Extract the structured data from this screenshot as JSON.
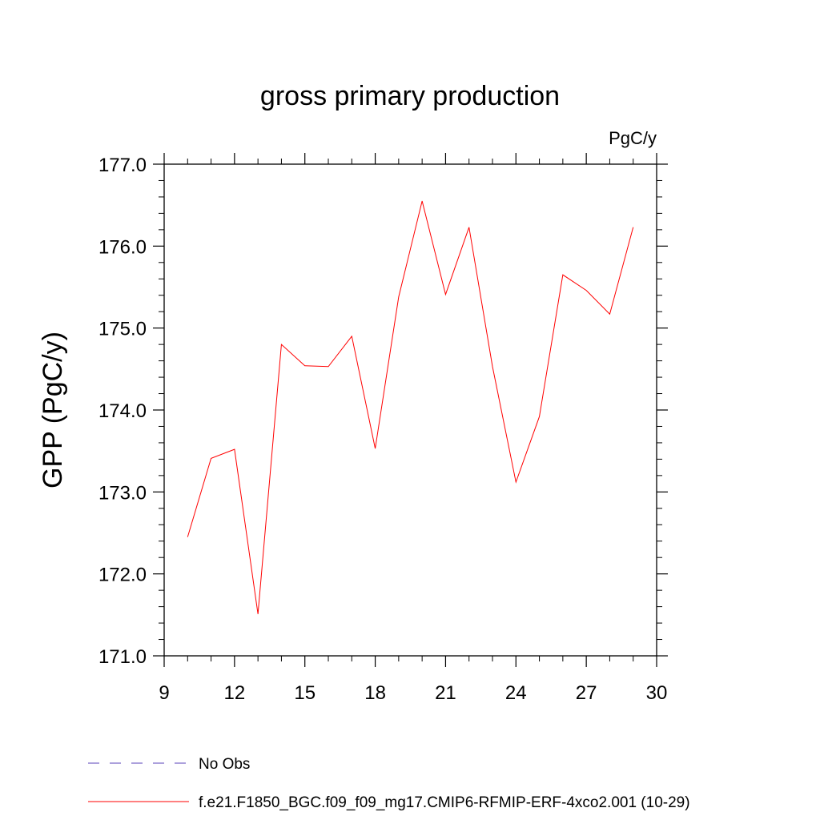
{
  "chart_data": {
    "type": "line",
    "title": "gross primary production",
    "units": "PgC/y",
    "ylabel": "GPP  (PgC/y)",
    "xlabel": "",
    "xlim": [
      9,
      30
    ],
    "ylim": [
      171.0,
      177.0
    ],
    "xticks": [
      9,
      12,
      15,
      18,
      21,
      24,
      27,
      30
    ],
    "xtick_labels": [
      "9",
      "12",
      "15",
      "18",
      "21",
      "24",
      "27",
      "30"
    ],
    "yticks": [
      171.0,
      172.0,
      173.0,
      174.0,
      175.0,
      176.0,
      177.0
    ],
    "ytick_labels": [
      "171.0",
      "172.0",
      "173.0",
      "174.0",
      "175.0",
      "176.0",
      "177.0"
    ],
    "grid": false,
    "legend_position": "bottom",
    "series": [
      {
        "name": "f.e21.F1850_BGC.f09_f09_mg17.CMIP6-RFMIP-ERF-4xco2.001 (10-29)",
        "color": "#ff0000",
        "style": "solid",
        "x": [
          10,
          11,
          12,
          13,
          14,
          15,
          16,
          17,
          18,
          19,
          20,
          21,
          22,
          23,
          24,
          25,
          26,
          27,
          28,
          29
        ],
        "y": [
          172.45,
          173.41,
          173.52,
          171.51,
          174.8,
          174.54,
          174.53,
          174.9,
          173.53,
          175.38,
          176.55,
          175.41,
          176.23,
          174.53,
          173.12,
          173.92,
          175.65,
          175.46,
          175.17,
          176.23
        ]
      }
    ],
    "legend": [
      {
        "label": "No Obs",
        "color": "#7b68c8",
        "style": "dashed"
      },
      {
        "label": "f.e21.F1850_BGC.f09_f09_mg17.CMIP6-RFMIP-ERF-4xco2.001 (10-29)",
        "color": "#ff0000",
        "style": "solid"
      }
    ]
  }
}
